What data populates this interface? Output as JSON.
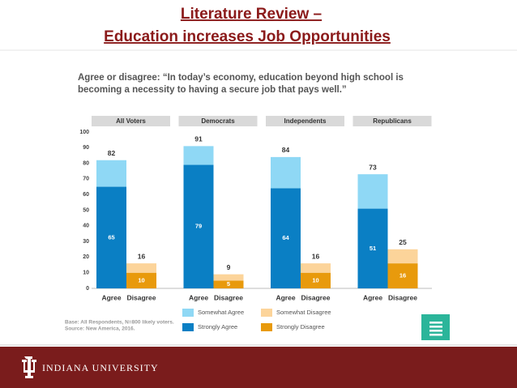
{
  "header": {
    "title_lines": [
      "Literature Review –",
      "Education increases Job Opportunities"
    ]
  },
  "chart_data": {
    "type": "stacked_bar",
    "title_lines": [
      "Agree or disagree: “In today’s economy, education beyond high school is",
      "becoming a necessity to having a secure job that pays well.”"
    ],
    "groups": [
      "All Voters",
      "Democrats",
      "Independents",
      "Republicans"
    ],
    "stacks": [
      "Agree",
      "Disagree"
    ],
    "series": [
      {
        "name": "Strongly Agree",
        "color": "#0a7fc4",
        "stack": "Agree",
        "show_labels": true,
        "values": [
          65,
          79,
          64,
          51
        ]
      },
      {
        "name": "Somewhat Agree",
        "color": "#8fd8f5",
        "stack": "Agree",
        "show_labels": false,
        "values": [
          17,
          12,
          20,
          22
        ]
      },
      {
        "name": "Strongly Disagree",
        "color": "#e89a0c",
        "stack": "Disagree",
        "show_labels": true,
        "values": [
          10,
          5,
          10,
          16
        ]
      },
      {
        "name": "Somewhat Disagree",
        "color": "#fcd49a",
        "stack": "Disagree",
        "show_labels": false,
        "values": [
          6,
          4,
          6,
          9
        ]
      }
    ],
    "totals": [
      [
        82,
        91,
        84,
        73
      ],
      [
        16,
        9,
        16,
        25
      ]
    ],
    "ylim": [
      0,
      100
    ],
    "yticks": [
      0,
      10,
      20,
      30,
      40,
      50,
      60,
      70,
      80,
      90,
      100
    ]
  },
  "note": {
    "base": "Base: All Respondents, N=800 likely voters.",
    "source": "Source: New America, 2016."
  },
  "footer": {
    "brand": "INDIANA UNIVERSITY"
  }
}
